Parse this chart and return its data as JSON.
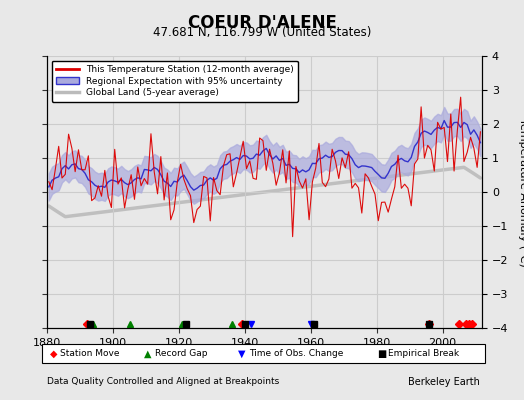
{
  "title": "COEUR D'ALENE",
  "subtitle": "47.681 N, 116.799 W (United States)",
  "ylabel": "Temperature Anomaly (°C)",
  "xlabel_note": "Data Quality Controlled and Aligned at Breakpoints",
  "credit": "Berkeley Earth",
  "ylim": [
    -4,
    4
  ],
  "xlim": [
    1880,
    2012
  ],
  "xticks": [
    1880,
    1900,
    1920,
    1940,
    1960,
    1980,
    2000
  ],
  "yticks": [
    -4,
    -3,
    -2,
    -1,
    0,
    1,
    2,
    3,
    4
  ],
  "bg_color": "#e8e8e8",
  "plot_bg_color": "#e8e8e8",
  "station_color": "#dd0000",
  "regional_color": "#3333cc",
  "regional_fill_color": "#aaaadd",
  "global_color": "#bbbbbb",
  "legend_items": [
    "This Temperature Station (12-month average)",
    "Regional Expectation with 95% uncertainty",
    "Global Land (5-year average)"
  ],
  "marker_events": {
    "station_moves": [
      1892,
      1939,
      1996,
      2005,
      2007,
      2008,
      2009
    ],
    "record_gaps": [
      1894,
      1905,
      1921,
      1936
    ],
    "obs_changes": [
      1942,
      1960
    ],
    "empirical_breaks": [
      1893,
      1922,
      1940,
      1961,
      1996
    ]
  },
  "grid_color": "#cccccc",
  "tick_color": "#333333"
}
